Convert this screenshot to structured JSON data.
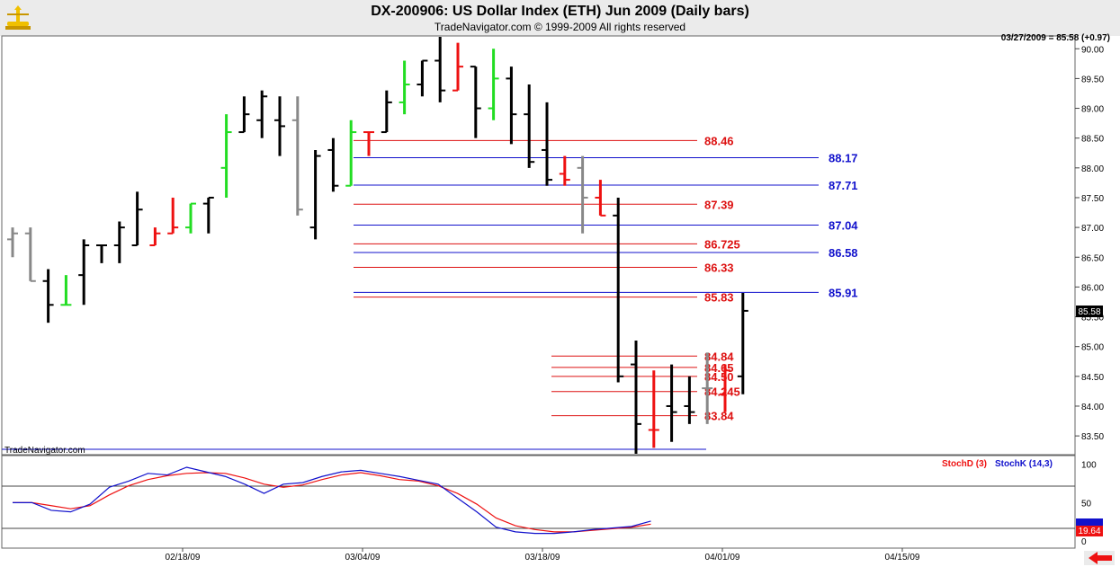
{
  "header": {
    "title": "DX-200906:  US Dollar Index (ETH) Jun 2009  (Daily bars)",
    "subtitle": "TradeNavigator.com © 1999-2009 All rights reserved"
  },
  "status_text": "03/27/2009 = 85.58 (+0.97)",
  "watermark": "TradeNavigator.com",
  "colors": {
    "up": "#22dd22",
    "down": "#ee1111",
    "neutral": "#000000",
    "inside": "#888888",
    "red_levels": "#dd1111",
    "blue_levels": "#1111cc",
    "stoch_d": "#ee1111",
    "stoch_k": "#1111cc",
    "header_bg": "#ebebeb",
    "logo": "#f0c000"
  },
  "price_axis": {
    "ticks": [
      "83.50",
      "84.00",
      "84.50",
      "85.00",
      "85.50",
      "86.00",
      "86.50",
      "87.00",
      "87.50",
      "88.00",
      "88.50",
      "89.00",
      "89.50",
      "90.00"
    ],
    "current_label": "85.58",
    "ylim": [
      83.2,
      90.2
    ]
  },
  "indicator_axis": {
    "ticks": [
      "100",
      "50",
      "0"
    ],
    "current_label": "19.64",
    "ylim": [
      -8,
      110
    ]
  },
  "date_labels": [
    "02/18/09",
    "03/04/09",
    "03/18/09",
    "04/01/09",
    "04/15/09"
  ],
  "levels": {
    "red": [
      "88.46",
      "87.39",
      "86.725",
      "86.33",
      "85.83",
      "84.84",
      "84.65",
      "84.50",
      "84.245",
      "83.84"
    ],
    "blue": [
      "88.17",
      "87.71",
      "87.04",
      "86.58",
      "85.91"
    ]
  },
  "legend": {
    "stoch_d": "StochD (3)",
    "stoch_k": "StochK (14,3)"
  },
  "chart_data": {
    "type": "ohlc",
    "title": "DX-200906:  US Dollar Index (ETH) Jun 2009  (Daily bars)",
    "ylim": [
      83.2,
      90.2
    ],
    "bars": [
      {
        "o": 86.8,
        "h": 87.0,
        "l": 86.5,
        "c": 86.9,
        "col": "inside"
      },
      {
        "o": 86.9,
        "h": 87.0,
        "l": 86.1,
        "c": 86.1,
        "col": "inside"
      },
      {
        "o": 86.1,
        "h": 86.3,
        "l": 85.4,
        "c": 85.7,
        "col": "neutral"
      },
      {
        "o": 85.7,
        "h": 86.2,
        "l": 85.7,
        "c": 85.7,
        "col": "up"
      },
      {
        "o": 86.2,
        "h": 86.8,
        "l": 85.7,
        "c": 86.7,
        "col": "neutral"
      },
      {
        "o": 86.7,
        "h": 86.7,
        "l": 86.4,
        "c": 86.7,
        "col": "neutral"
      },
      {
        "o": 86.7,
        "h": 87.1,
        "l": 86.4,
        "c": 87.0,
        "col": "neutral"
      },
      {
        "o": 86.7,
        "h": 87.6,
        "l": 86.7,
        "c": 87.3,
        "col": "neutral"
      },
      {
        "o": 86.7,
        "h": 87.0,
        "l": 86.7,
        "c": 86.9,
        "col": "down"
      },
      {
        "o": 86.9,
        "h": 87.5,
        "l": 86.9,
        "c": 87.0,
        "col": "down"
      },
      {
        "o": 87.0,
        "h": 87.4,
        "l": 86.9,
        "c": 87.4,
        "col": "up"
      },
      {
        "o": 87.4,
        "h": 87.5,
        "l": 86.9,
        "c": 87.5,
        "col": "neutral"
      },
      {
        "o": 88.0,
        "h": 88.9,
        "l": 87.5,
        "c": 88.6,
        "col": "up"
      },
      {
        "o": 88.6,
        "h": 89.2,
        "l": 88.6,
        "c": 88.9,
        "col": "neutral"
      },
      {
        "o": 88.8,
        "h": 89.3,
        "l": 88.5,
        "c": 89.2,
        "col": "neutral"
      },
      {
        "o": 88.8,
        "h": 89.2,
        "l": 88.2,
        "c": 88.7,
        "col": "neutral"
      },
      {
        "o": 88.8,
        "h": 89.2,
        "l": 87.2,
        "c": 87.3,
        "col": "inside"
      },
      {
        "o": 87.0,
        "h": 88.3,
        "l": 86.8,
        "c": 88.2,
        "col": "neutral"
      },
      {
        "o": 88.3,
        "h": 88.5,
        "l": 87.6,
        "c": 87.7,
        "col": "neutral"
      },
      {
        "o": 87.7,
        "h": 88.8,
        "l": 87.7,
        "c": 88.6,
        "col": "up"
      },
      {
        "o": 88.6,
        "h": 88.6,
        "l": 88.2,
        "c": 88.6,
        "col": "down"
      },
      {
        "o": 88.6,
        "h": 89.3,
        "l": 88.6,
        "c": 89.1,
        "col": "neutral"
      },
      {
        "o": 89.1,
        "h": 89.8,
        "l": 88.9,
        "c": 89.4,
        "col": "up"
      },
      {
        "o": 89.4,
        "h": 89.8,
        "l": 89.2,
        "c": 89.8,
        "col": "neutral"
      },
      {
        "o": 89.8,
        "h": 90.2,
        "l": 89.1,
        "c": 89.3,
        "col": "neutral"
      },
      {
        "o": 89.3,
        "h": 90.1,
        "l": 89.3,
        "c": 89.7,
        "col": "down"
      },
      {
        "o": 89.7,
        "h": 89.7,
        "l": 88.5,
        "c": 89.0,
        "col": "neutral"
      },
      {
        "o": 89.0,
        "h": 90.0,
        "l": 88.8,
        "c": 89.5,
        "col": "up"
      },
      {
        "o": 89.5,
        "h": 89.7,
        "l": 88.4,
        "c": 88.9,
        "col": "neutral"
      },
      {
        "o": 88.9,
        "h": 89.4,
        "l": 88.0,
        "c": 88.1,
        "col": "neutral"
      },
      {
        "o": 88.3,
        "h": 89.1,
        "l": 87.7,
        "c": 87.8,
        "col": "neutral"
      },
      {
        "o": 87.9,
        "h": 88.2,
        "l": 87.7,
        "c": 87.8,
        "col": "down"
      },
      {
        "o": 88.0,
        "h": 88.2,
        "l": 86.9,
        "c": 87.5,
        "col": "inside"
      },
      {
        "o": 87.5,
        "h": 87.8,
        "l": 87.2,
        "c": 87.2,
        "col": "down"
      },
      {
        "o": 87.2,
        "h": 87.5,
        "l": 84.4,
        "c": 84.5,
        "col": "neutral"
      },
      {
        "o": 84.7,
        "h": 85.1,
        "l": 83.2,
        "c": 83.7,
        "col": "neutral"
      },
      {
        "o": 83.6,
        "h": 84.6,
        "l": 83.3,
        "c": 83.6,
        "col": "down"
      },
      {
        "o": 84.0,
        "h": 84.7,
        "l": 83.4,
        "c": 83.9,
        "col": "neutral"
      },
      {
        "o": 84.0,
        "h": 84.5,
        "l": 83.7,
        "c": 83.9,
        "col": "neutral"
      },
      {
        "o": 84.3,
        "h": 84.9,
        "l": 83.7,
        "c": 84.3,
        "col": "inside"
      },
      {
        "o": 84.2,
        "h": 84.7,
        "l": 83.9,
        "c": 84.6,
        "col": "down"
      },
      {
        "o": 84.5,
        "h": 85.9,
        "l": 84.2,
        "c": 85.6,
        "col": "neutral"
      }
    ],
    "stochastics": {
      "series": [
        {
          "name": "StochD (3)",
          "values": [
            50,
            50,
            46,
            42,
            46,
            60,
            72,
            80,
            85,
            88,
            89,
            88,
            82,
            74,
            70,
            73,
            80,
            86,
            89,
            85,
            80,
            78,
            72,
            62,
            48,
            30,
            20,
            15,
            12,
            12,
            14,
            16,
            18,
            22
          ]
        },
        {
          "name": "StochK (14,3)",
          "values": [
            50,
            50,
            40,
            38,
            48,
            70,
            78,
            88,
            86,
            96,
            90,
            84,
            74,
            62,
            74,
            76,
            84,
            90,
            92,
            88,
            84,
            79,
            74,
            56,
            38,
            18,
            12,
            10,
            10,
            12,
            15,
            17,
            19,
            26
          ]
        }
      ],
      "ylim": [
        -8,
        110
      ]
    }
  }
}
